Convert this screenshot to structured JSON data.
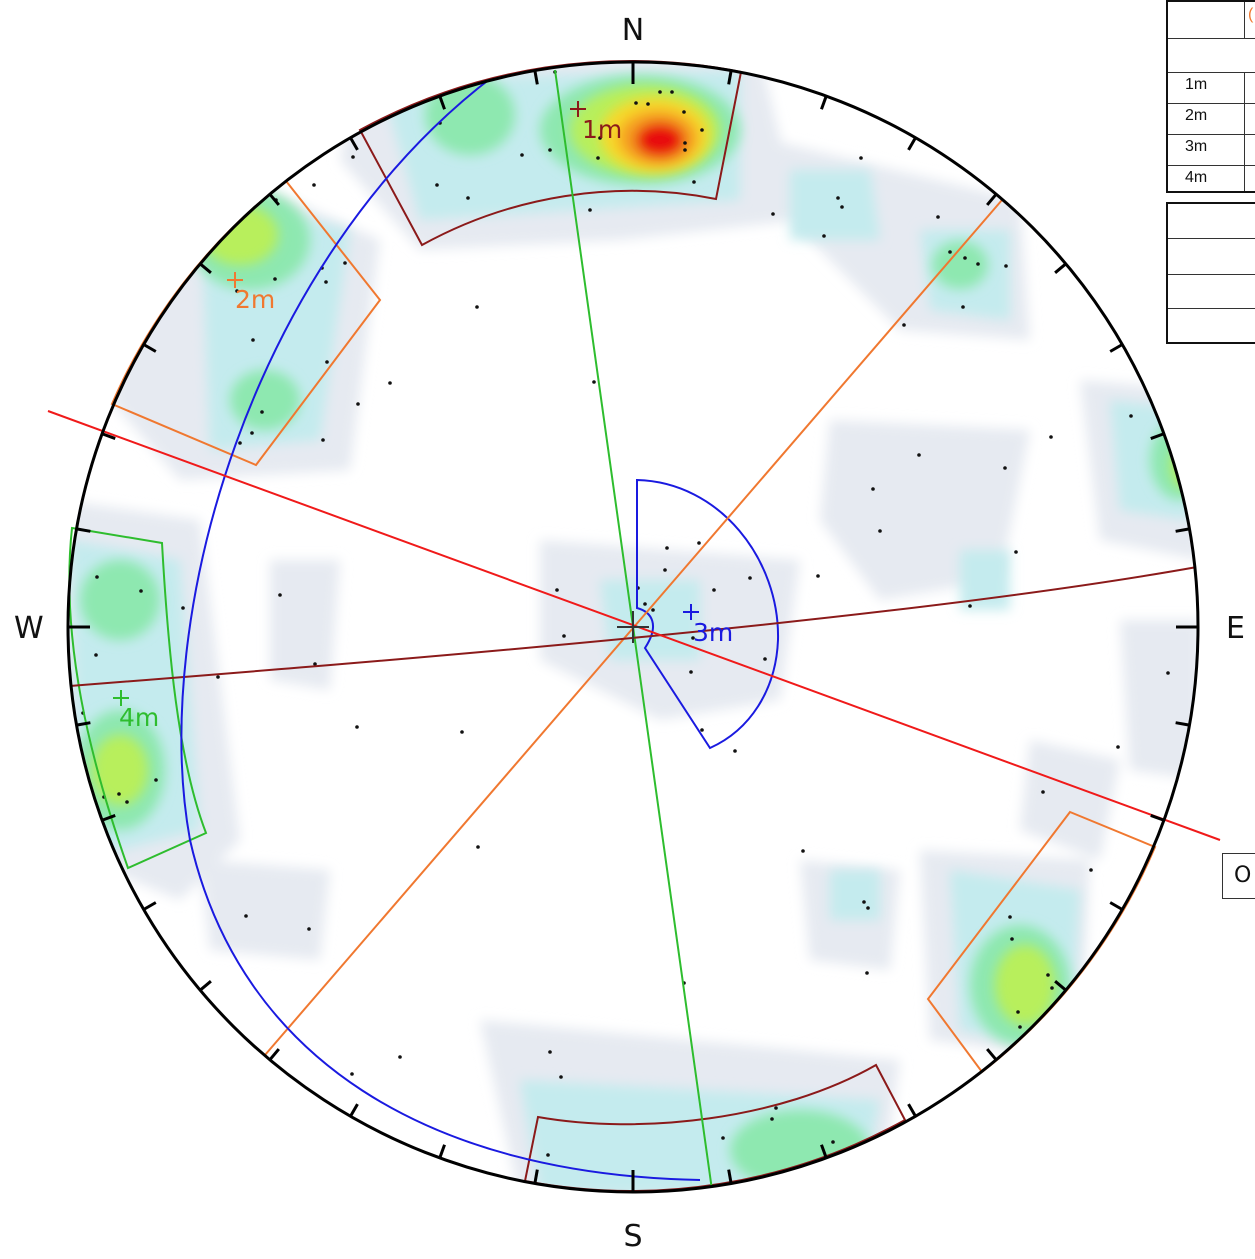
{
  "compass": {
    "north": "N",
    "south": "S",
    "east": "E",
    "west": "W"
  },
  "sets": [
    {
      "label": "1m",
      "color": "#8b1a1a"
    },
    {
      "label": "2m",
      "color": "#f07830"
    },
    {
      "label": "3m",
      "color": "#1a1ae0"
    },
    {
      "label": "4m",
      "color": "#2ebd2e"
    }
  ],
  "legend_table": {
    "header_partial": "(",
    "rows": [
      "1m",
      "2m",
      "3m",
      "4m"
    ]
  },
  "cut_off_box_text": "O",
  "colors": {
    "primitive_circle": "#000000",
    "contour_low": "#e8ecf2",
    "contour_mid": "#c6ecef",
    "contour_high": "#7de8a6",
    "contour_peak": "#e81010",
    "red_plane": "#f01a1a"
  }
}
